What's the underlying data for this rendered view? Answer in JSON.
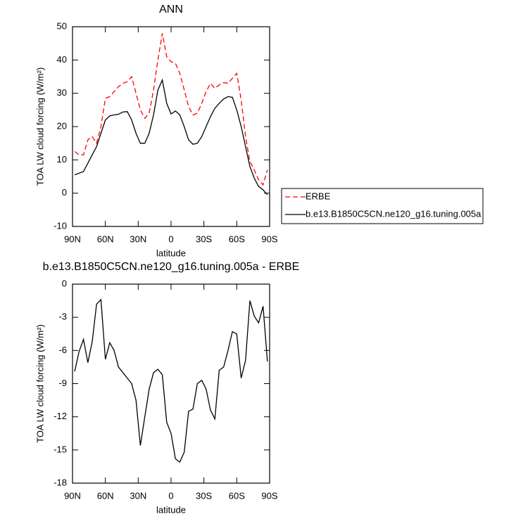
{
  "chart_data": [
    {
      "type": "line",
      "title": "ANN",
      "xlabel": "latitude",
      "ylabel": "TOA LW cloud forcing (W/m²)",
      "x": [
        88,
        84,
        80,
        76,
        72,
        68,
        64,
        60,
        56,
        52,
        48,
        44,
        40,
        36,
        32,
        28,
        24,
        20,
        16,
        12,
        8,
        4,
        0,
        -4,
        -8,
        -12,
        -16,
        -20,
        -24,
        -28,
        -32,
        -36,
        -40,
        -44,
        -48,
        -52,
        -56,
        -60,
        -64,
        -68,
        -72,
        -76,
        -80,
        -84,
        -88
      ],
      "series": [
        {
          "name": "ERBE",
          "color": "#ff0000",
          "dash": true,
          "values": [
            12.5,
            11.5,
            11.5,
            16,
            17,
            15,
            20,
            28.5,
            29,
            30.5,
            32,
            33,
            33.5,
            35,
            30,
            25,
            22.5,
            24,
            31,
            40,
            48,
            41,
            39.5,
            39,
            36,
            31,
            26,
            23.5,
            24,
            27,
            30.5,
            33,
            31.5,
            32.5,
            33.2,
            33,
            34.5,
            36,
            28,
            17,
            9.5,
            7,
            4,
            2.5,
            7
          ]
        },
        {
          "name": "b.e13.B1850C5CN.ne120_g16.tuning.005a",
          "color": "#000000",
          "dash": false,
          "values": [
            5.5,
            6,
            6.5,
            9,
            11.5,
            14,
            18,
            22,
            23.2,
            23.5,
            23.7,
            24.4,
            24.5,
            22,
            18,
            15,
            15,
            18,
            23.5,
            31,
            34,
            27,
            23.8,
            24.7,
            23.5,
            20,
            16,
            14.7,
            15,
            17,
            20,
            23,
            25.5,
            27,
            28.3,
            29,
            28.8,
            25,
            20,
            14,
            8,
            4.5,
            2,
            1,
            -0.5
          ]
        }
      ],
      "xlim": [
        90,
        -90
      ],
      "xticks": [
        {
          "value": 90,
          "label": "90N"
        },
        {
          "value": 60,
          "label": "60N"
        },
        {
          "value": 30,
          "label": "30N"
        },
        0,
        {
          "value": -30,
          "label": "30S"
        },
        {
          "value": -60,
          "label": "60S"
        },
        {
          "value": -90,
          "label": "90S"
        }
      ],
      "ylim": [
        -10,
        50
      ],
      "yticks": [
        -10,
        0,
        10,
        20,
        30,
        40,
        50
      ],
      "legend": "right"
    },
    {
      "type": "line",
      "title": "b.e13.B1850C5CN.ne120_g16.tuning.005a - ERBE",
      "xlabel": "latitude",
      "ylabel": "TOA LW cloud forcing (W/m²)",
      "x": [
        88,
        84,
        80,
        76,
        72,
        68,
        64,
        60,
        56,
        52,
        48,
        44,
        40,
        36,
        32,
        28,
        24,
        20,
        16,
        12,
        8,
        4,
        0,
        -4,
        -8,
        -12,
        -16,
        -20,
        -24,
        -28,
        -32,
        -36,
        -40,
        -44,
        -48,
        -52,
        -56,
        -60,
        -64,
        -68,
        -72,
        -76,
        -80,
        -84,
        -88
      ],
      "series": [
        {
          "color": "#000000",
          "dash": false,
          "values": [
            -7.9,
            -6.1,
            -5,
            -7.1,
            -5.2,
            -1.8,
            -1.4,
            -6.8,
            -5.3,
            -6,
            -7.5,
            -8,
            -8.5,
            -9,
            -10.5,
            -14.6,
            -12,
            -9.5,
            -8,
            -7.7,
            -8.2,
            -12.5,
            -13.5,
            -15.8,
            -16.1,
            -15.2,
            -11.5,
            -11.3,
            -9,
            -8.7,
            -9.5,
            -11.4,
            -12.2,
            -7.8,
            -7.5,
            -6,
            -4.3,
            -4.5,
            -8.5,
            -6.9,
            -1.5,
            -2.9,
            -3.5,
            -2,
            -7
          ]
        }
      ],
      "xlim": [
        90,
        -90
      ],
      "xticks": [
        {
          "value": 90,
          "label": "90N"
        },
        {
          "value": 60,
          "label": "60N"
        },
        {
          "value": 30,
          "label": "30N"
        },
        0,
        {
          "value": -30,
          "label": "30S"
        },
        {
          "value": -60,
          "label": "60S"
        },
        {
          "value": -90,
          "label": "90S"
        }
      ],
      "ylim": [
        -18,
        0
      ],
      "yticks": [
        -18,
        -15,
        -12,
        -9,
        -6,
        -3,
        0
      ]
    }
  ]
}
